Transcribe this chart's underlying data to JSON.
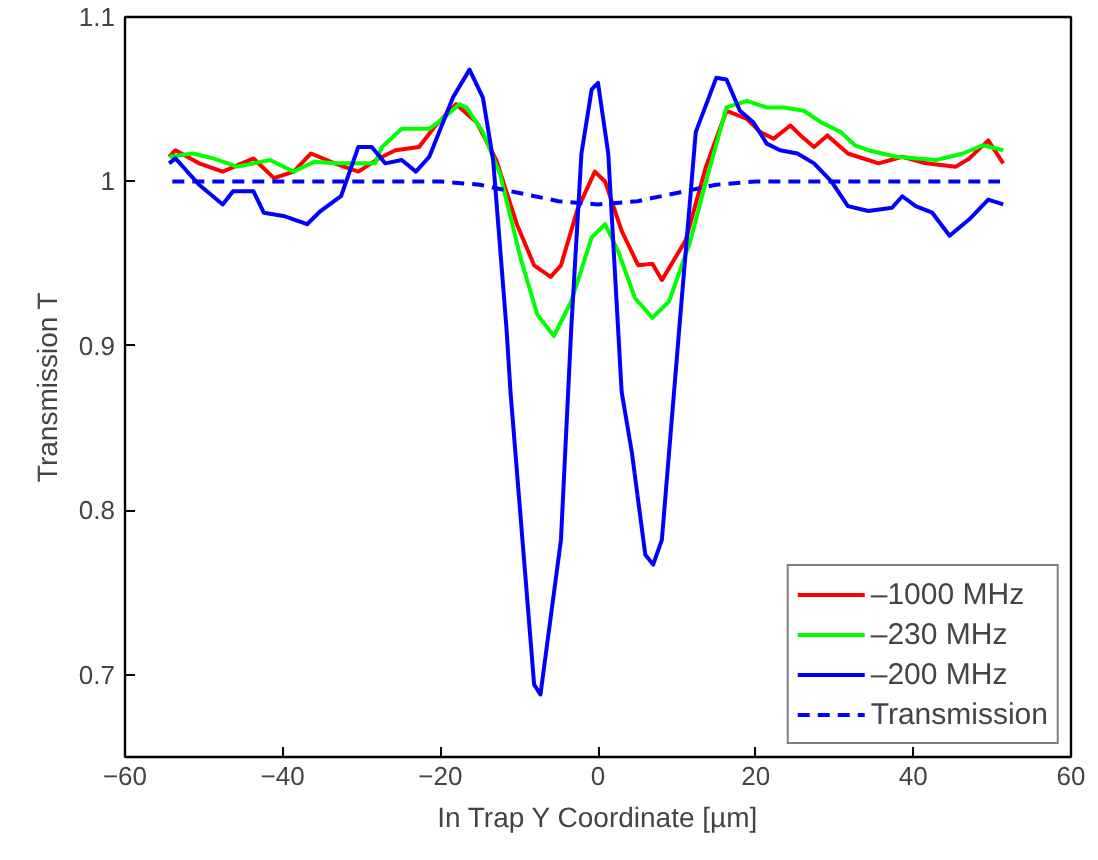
{
  "chart_data": {
    "type": "line",
    "xlabel": "In Trap Y Coordinate [µm]",
    "ylabel": "Transmission T",
    "xlim": [
      -60,
      60
    ],
    "ylim": [
      0.65,
      1.1
    ],
    "xticks": [
      -60,
      -40,
      -20,
      0,
      20,
      40,
      60
    ],
    "yticks": [
      {
        "value": 0.7,
        "label": "0.7"
      },
      {
        "value": 0.8,
        "label": "0.8"
      },
      {
        "value": 0.9,
        "label": "0.9"
      },
      {
        "value": 1,
        "label": "1"
      },
      {
        "value": 1.1,
        "label": "1.1"
      }
    ],
    "grid": false,
    "legend": "bottom right",
    "marker": "none",
    "series": [
      {
        "name": "–1000 MHz",
        "color": "#ff0000",
        "line_style": "solid",
        "x": [
          -54.4,
          -53.6,
          -50.6,
          -47.6,
          -43.7,
          -41.1,
          -38.6,
          -36.4,
          -33.4,
          -30.4,
          -27.8,
          -25.7,
          -22.7,
          -20.6,
          -18,
          -15.4,
          -12.9,
          -10.3,
          -8.1,
          -6,
          -4.7,
          -2.6,
          -0.4,
          0.9,
          3,
          5.1,
          6.9,
          8.1,
          11.1,
          13.7,
          16.3,
          18.9,
          20.6,
          22.3,
          24.4,
          25.7,
          27.4,
          29.1,
          31.7,
          35.6,
          38.6,
          41.6,
          45.4,
          47.1,
          49.5,
          51.4
        ],
        "values": [
          1.015,
          1.019,
          1.011,
          1.006,
          1.014,
          1.002,
          1.006,
          1.017,
          1.011,
          1.006,
          1.014,
          1.019,
          1.021,
          1.034,
          1.047,
          1.036,
          1.013,
          0.974,
          0.949,
          0.942,
          0.949,
          0.983,
          1.006,
          1.0,
          0.97,
          0.949,
          0.95,
          0.94,
          0.964,
          1.009,
          1.043,
          1.038,
          1.03,
          1.026,
          1.034,
          1.028,
          1.021,
          1.028,
          1.017,
          1.011,
          1.015,
          1.011,
          1.009,
          1.014,
          1.025,
          1.011
        ]
      },
      {
        "name": "–230 MHz",
        "color": "#00ff00",
        "line_style": "solid",
        "x": [
          -54.4,
          -51.4,
          -48.8,
          -45.8,
          -41.6,
          -38.6,
          -36,
          -33.4,
          -30.8,
          -28.3,
          -27.4,
          -24.9,
          -21.4,
          -19.7,
          -17.6,
          -16.7,
          -14.6,
          -12.4,
          -9.8,
          -7.7,
          -5.6,
          -3.4,
          -0.8,
          0.9,
          2.6,
          4.7,
          6.9,
          9,
          11.6,
          13.7,
          16.3,
          18.9,
          21.4,
          23.6,
          26.1,
          28.3,
          30.8,
          32.6,
          34.3,
          37.8,
          42.9,
          46.3,
          48.8,
          51.4
        ],
        "values": [
          1.015,
          1.017,
          1.014,
          1.009,
          1.013,
          1.006,
          1.012,
          1.011,
          1.011,
          1.011,
          1.021,
          1.032,
          1.032,
          1.038,
          1.047,
          1.045,
          1.03,
          1.004,
          0.953,
          0.919,
          0.906,
          0.927,
          0.966,
          0.974,
          0.957,
          0.929,
          0.917,
          0.927,
          0.962,
          1.0,
          1.045,
          1.049,
          1.045,
          1.045,
          1.043,
          1.036,
          1.03,
          1.022,
          1.019,
          1.015,
          1.013,
          1.017,
          1.022,
          1.019
        ]
      },
      {
        "name": "–200 MHz",
        "color": "#0000ff",
        "line_style": "solid",
        "x": [
          -54.4,
          -53.6,
          -50.6,
          -47.6,
          -46.3,
          -43.7,
          -42.4,
          -39.9,
          -36.9,
          -35.2,
          -32.6,
          -30.4,
          -28.7,
          -27,
          -24.9,
          -23.1,
          -21.4,
          -18.4,
          -16.3,
          -14.6,
          -13.3,
          -11.6,
          -11.1,
          -8.1,
          -7.3,
          -4.7,
          -3.4,
          -2.1,
          -0.8,
          0,
          1.3,
          3,
          4.3,
          6,
          7,
          8.1,
          10.3,
          12.4,
          15,
          16.3,
          18,
          19.7,
          21.4,
          23.1,
          25.3,
          27.4,
          29.6,
          31.7,
          34.3,
          37.3,
          38.6,
          40.3,
          42.4,
          44.6,
          47.1,
          49.5,
          51.4
        ],
        "values": [
          1.011,
          1.014,
          0.998,
          0.986,
          0.994,
          0.994,
          0.981,
          0.979,
          0.974,
          0.982,
          0.991,
          1.021,
          1.021,
          1.011,
          1.013,
          1.006,
          1.015,
          1.051,
          1.068,
          1.051,
          1.013,
          0.91,
          0.872,
          0.694,
          0.688,
          0.782,
          0.91,
          1.017,
          1.056,
          1.06,
          1.017,
          0.872,
          0.835,
          0.773,
          0.767,
          0.782,
          0.91,
          1.03,
          1.063,
          1.062,
          1.043,
          1.036,
          1.023,
          1.019,
          1.017,
          1.011,
          1.0,
          0.985,
          0.982,
          0.984,
          0.991,
          0.985,
          0.981,
          0.967,
          0.977,
          0.989,
          0.986
        ]
      },
      {
        "name": "Transmission",
        "color": "#0000ff",
        "line_style": "dashed",
        "x": [
          -54,
          -20,
          -15,
          -10,
          -5,
          0,
          5,
          10,
          15,
          20,
          51
        ],
        "values": [
          1.0,
          1.0,
          0.998,
          0.993,
          0.988,
          0.986,
          0.988,
          0.993,
          0.998,
          1.0,
          1.0
        ]
      }
    ]
  }
}
